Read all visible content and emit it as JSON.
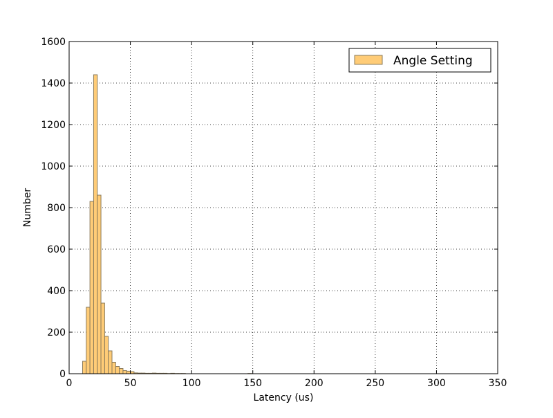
{
  "chart_data": {
    "type": "bar",
    "title": "",
    "xlabel": "Latency (us)",
    "ylabel": "Number",
    "xlim": [
      0,
      350
    ],
    "ylim": [
      0,
      1600
    ],
    "xticks": [
      0,
      50,
      100,
      150,
      200,
      250,
      300,
      350
    ],
    "yticks": [
      0,
      200,
      400,
      600,
      800,
      1000,
      1200,
      1400,
      1600
    ],
    "grid": true,
    "legend_position": "top-right",
    "bar_color": "#ffcc77",
    "edge_color": "#8a7a5a",
    "series": [
      {
        "name": "Angle Setting",
        "bins": [
          {
            "x0": 11.0,
            "x1": 14.0,
            "count": 60
          },
          {
            "x0": 14.0,
            "x1": 17.0,
            "count": 320
          },
          {
            "x0": 17.0,
            "x1": 20.0,
            "count": 830
          },
          {
            "x0": 20.0,
            "x1": 23.0,
            "count": 1440
          },
          {
            "x0": 23.0,
            "x1": 26.0,
            "count": 860
          },
          {
            "x0": 26.0,
            "x1": 29.0,
            "count": 340
          },
          {
            "x0": 29.0,
            "x1": 32.0,
            "count": 180
          },
          {
            "x0": 32.0,
            "x1": 35.0,
            "count": 110
          },
          {
            "x0": 35.0,
            "x1": 38.0,
            "count": 55
          },
          {
            "x0": 38.0,
            "x1": 41.0,
            "count": 35
          },
          {
            "x0": 41.0,
            "x1": 44.0,
            "count": 25
          },
          {
            "x0": 44.0,
            "x1": 47.0,
            "count": 15
          },
          {
            "x0": 47.0,
            "x1": 50.0,
            "count": 12
          },
          {
            "x0": 50.0,
            "x1": 53.0,
            "count": 10
          },
          {
            "x0": 53.0,
            "x1": 56.0,
            "count": 4
          },
          {
            "x0": 56.0,
            "x1": 59.0,
            "count": 3
          },
          {
            "x0": 59.0,
            "x1": 62.0,
            "count": 3
          },
          {
            "x0": 62.0,
            "x1": 65.0,
            "count": 2
          },
          {
            "x0": 65.0,
            "x1": 68.0,
            "count": 2
          },
          {
            "x0": 68.0,
            "x1": 71.0,
            "count": 3
          },
          {
            "x0": 71.0,
            "x1": 74.0,
            "count": 2
          },
          {
            "x0": 74.0,
            "x1": 77.0,
            "count": 2
          },
          {
            "x0": 77.0,
            "x1": 80.0,
            "count": 2
          },
          {
            "x0": 80.0,
            "x1": 83.0,
            "count": 1
          },
          {
            "x0": 83.0,
            "x1": 86.0,
            "count": 2
          },
          {
            "x0": 86.0,
            "x1": 89.0,
            "count": 1
          },
          {
            "x0": 89.0,
            "x1": 92.0,
            "count": 1
          },
          {
            "x0": 92.0,
            "x1": 95.0,
            "count": 1
          },
          {
            "x0": 146.0,
            "x1": 149.0,
            "count": 1
          }
        ]
      }
    ]
  }
}
